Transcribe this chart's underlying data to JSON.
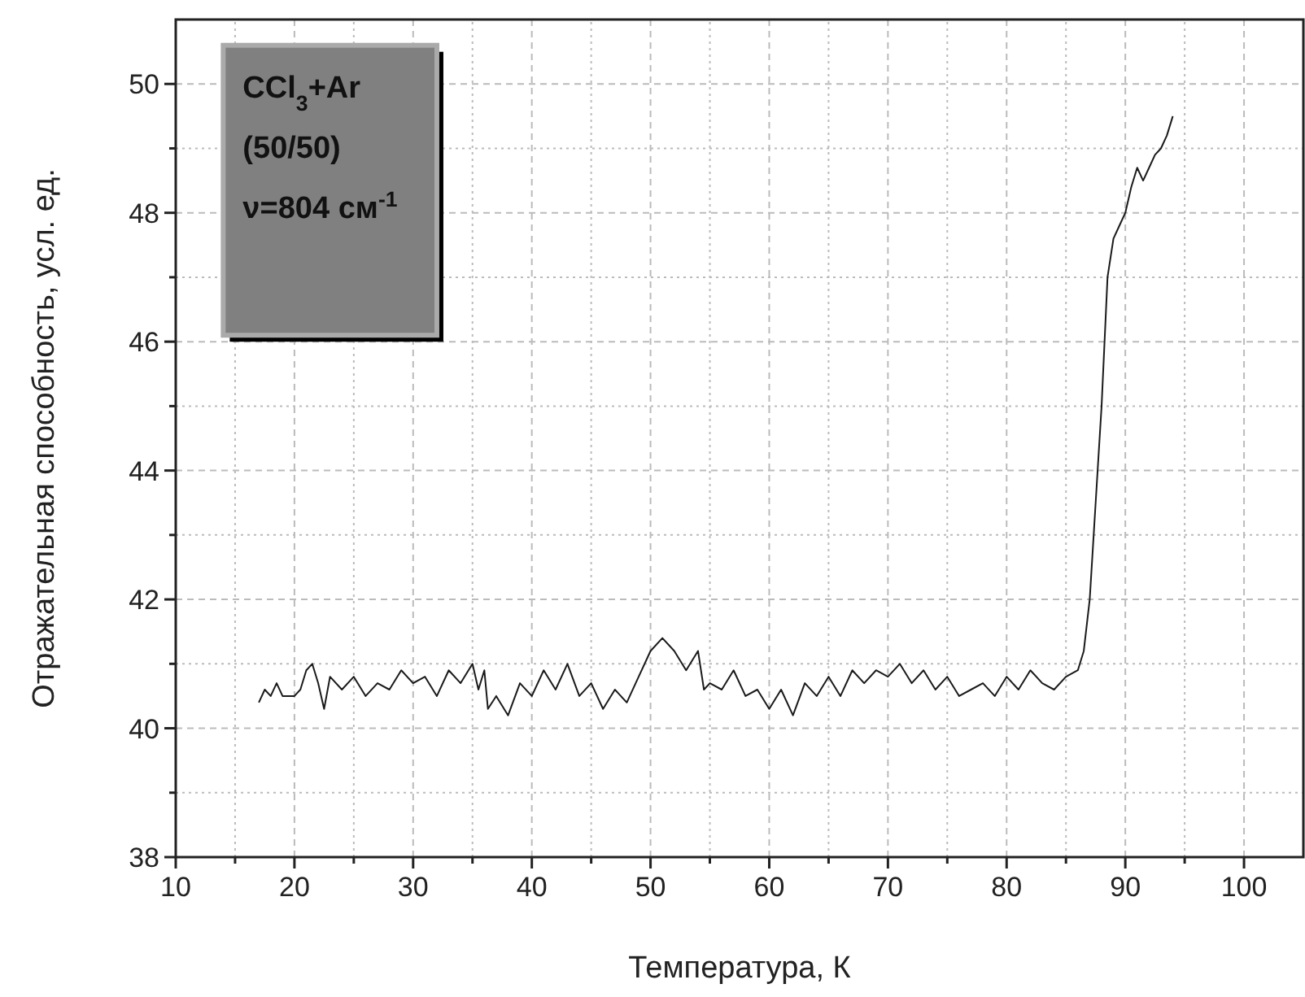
{
  "chart_data": {
    "type": "line",
    "xlabel": "Температура, К",
    "ylabel": "Отражательная способность, усл. ед.",
    "annotations": [
      "CCl$_{3}$+Ar",
      "(50/50)",
      "ν=804 см$^{-1}$"
    ],
    "xlim": [
      10,
      105
    ],
    "ylim": [
      38,
      51
    ],
    "xticks": [
      10,
      {
        "value": 15,
        "label": null
      },
      20,
      {
        "value": 25,
        "label": null
      },
      30,
      {
        "value": 35,
        "label": null
      },
      40,
      {
        "value": 45,
        "label": null
      },
      50,
      {
        "value": 55,
        "label": null
      },
      60,
      {
        "value": 65,
        "label": null
      },
      70,
      {
        "value": 75,
        "label": null
      },
      80,
      {
        "value": 85,
        "label": null
      },
      90,
      {
        "value": 95,
        "label": null
      },
      100
    ],
    "yticks": [
      38,
      {
        "value": 39,
        "label": null
      },
      40,
      {
        "value": 41,
        "label": null
      },
      42,
      {
        "value": 43,
        "label": null
      },
      44,
      {
        "value": 45,
        "label": null
      },
      46,
      {
        "value": 47,
        "label": null
      },
      48,
      {
        "value": 49,
        "label": null
      },
      50
    ],
    "grid": true,
    "marker": "none",
    "line_style": "solid",
    "series": [
      {
        "color": "#1a1a1a",
        "x": [
          17,
          17.5,
          18,
          18.5,
          19,
          20,
          20.5,
          21,
          21.5,
          22,
          22.5,
          23,
          24,
          25,
          26,
          27,
          28,
          29,
          30,
          31,
          32,
          33,
          34,
          35,
          35.5,
          36,
          36.3,
          37,
          38,
          39,
          40,
          41,
          42,
          43,
          44,
          45,
          46,
          47,
          48,
          49,
          50,
          51,
          52,
          53,
          54,
          54.5,
          55,
          56,
          57,
          58,
          59,
          60,
          61,
          62,
          63,
          64,
          65,
          66,
          67,
          68,
          69,
          70,
          71,
          72,
          73,
          74,
          75,
          76,
          77,
          78,
          79,
          80,
          81,
          82,
          83,
          84,
          85,
          86,
          86.5,
          87,
          87.5,
          88,
          88.5,
          89,
          89.5,
          90,
          90.5,
          91,
          91.5,
          92,
          92.5,
          93,
          93.5,
          94
        ],
        "values": [
          40.4,
          40.6,
          40.5,
          40.7,
          40.5,
          40.5,
          40.6,
          40.9,
          41.0,
          40.7,
          40.3,
          40.8,
          40.6,
          40.8,
          40.5,
          40.7,
          40.6,
          40.9,
          40.7,
          40.8,
          40.5,
          40.9,
          40.7,
          41.0,
          40.6,
          40.9,
          40.3,
          40.5,
          40.2,
          40.7,
          40.5,
          40.9,
          40.6,
          41.0,
          40.5,
          40.7,
          40.3,
          40.6,
          40.4,
          40.8,
          41.2,
          41.4,
          41.2,
          40.9,
          41.2,
          40.6,
          40.7,
          40.6,
          40.9,
          40.5,
          40.6,
          40.3,
          40.6,
          40.2,
          40.7,
          40.5,
          40.8,
          40.5,
          40.9,
          40.7,
          40.9,
          40.8,
          41.0,
          40.7,
          40.9,
          40.6,
          40.8,
          40.5,
          40.6,
          40.7,
          40.5,
          40.8,
          40.6,
          40.9,
          40.7,
          40.6,
          40.8,
          40.9,
          41.2,
          42.0,
          43.5,
          45.0,
          47.0,
          47.6,
          47.8,
          48.0,
          48.4,
          48.7,
          48.5,
          48.7,
          48.9,
          49.0,
          49.2,
          49.5
        ]
      }
    ]
  }
}
